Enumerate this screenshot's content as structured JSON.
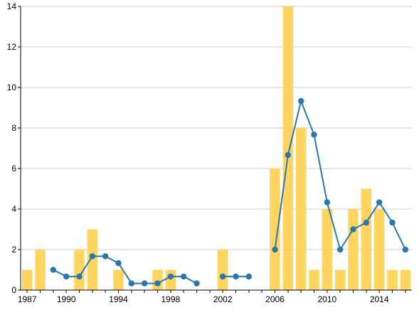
{
  "chart_data": {
    "type": "bar",
    "title": "",
    "xlabel": "",
    "ylabel": "",
    "xlim": [
      1987,
      2016
    ],
    "ylim": [
      0,
      14
    ],
    "y_ticks": [
      0,
      2,
      4,
      6,
      8,
      10,
      12,
      14
    ],
    "x_ticks": [
      1987,
      1990,
      1994,
      1998,
      2002,
      2006,
      2010,
      2014
    ],
    "grid": true,
    "legend": "none",
    "colors": {
      "bar": "#FFD55F",
      "line": "#2A77AC"
    },
    "series": [
      {
        "type": "bar",
        "x": [
          1987,
          1988,
          1991,
          1992,
          1994,
          1997,
          1998,
          2002,
          2006,
          2007,
          2008,
          2009,
          2010,
          2011,
          2012,
          2013,
          2014,
          2015,
          2016
        ],
        "values": [
          1,
          2,
          2,
          3,
          1,
          1,
          1,
          2,
          6,
          14,
          8,
          1,
          4,
          1,
          4,
          5,
          4,
          1,
          1
        ]
      },
      {
        "type": "line",
        "segments": [
          {
            "x": [
              1989,
              1990,
              1991,
              1992,
              1993,
              1994,
              1995,
              1996,
              1997,
              1998,
              1999,
              2000
            ],
            "values": [
              1.0,
              0.67,
              0.67,
              1.67,
              1.67,
              1.33,
              0.33,
              0.33,
              0.33,
              0.67,
              0.67,
              0.33
            ]
          },
          {
            "x": [
              2002,
              2003,
              2004
            ],
            "values": [
              0.67,
              0.67,
              0.67
            ]
          },
          {
            "x": [
              2006,
              2007,
              2008,
              2009,
              2010,
              2011,
              2012,
              2013,
              2014,
              2015,
              2016
            ],
            "values": [
              2.0,
              6.67,
              9.33,
              7.67,
              4.33,
              2.0,
              3.0,
              3.33,
              4.33,
              3.33,
              2.0
            ]
          }
        ]
      }
    ]
  }
}
